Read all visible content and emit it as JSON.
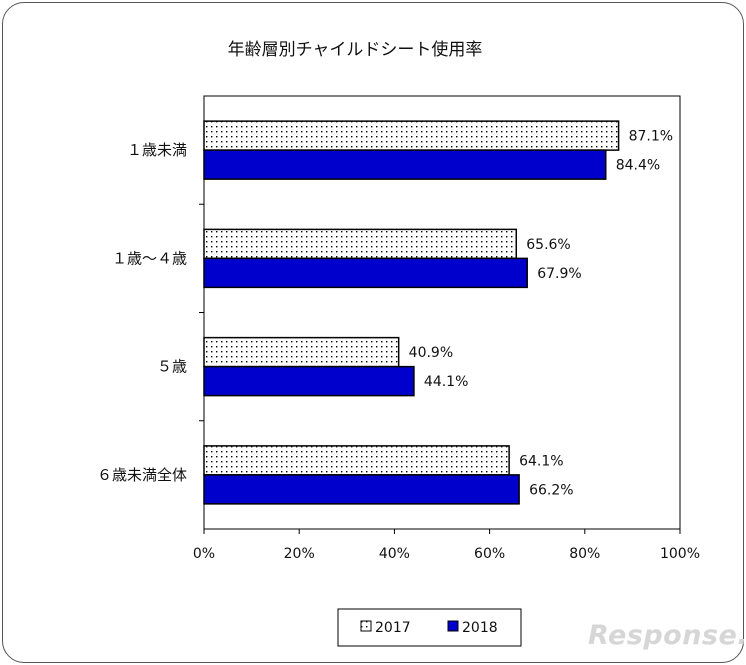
{
  "chart_data": {
    "type": "bar",
    "orientation": "horizontal",
    "title": "年齢層別チャイルドシート使用率",
    "categories": [
      "１歳未満",
      "１歳～４歳",
      "５歳",
      "６歳未満全体"
    ],
    "series": [
      {
        "name": "2017",
        "values": [
          87.1,
          65.6,
          40.9,
          64.1
        ],
        "labels": [
          "87.1%",
          "65.6%",
          "40.9%",
          "64.1%"
        ],
        "fill": "dotted",
        "color": "#ffffff"
      },
      {
        "name": "2018",
        "values": [
          84.4,
          67.9,
          44.1,
          66.2
        ],
        "labels": [
          "84.4%",
          "67.9%",
          "44.1%",
          "66.2%"
        ],
        "fill": "solid",
        "color": "#0000cc"
      }
    ],
    "xlim": [
      0,
      100
    ],
    "xticks": [
      "0%",
      "20%",
      "40%",
      "60%",
      "80%",
      "100%"
    ],
    "grid": false,
    "legend_position": "bottom"
  },
  "watermark": "Response."
}
